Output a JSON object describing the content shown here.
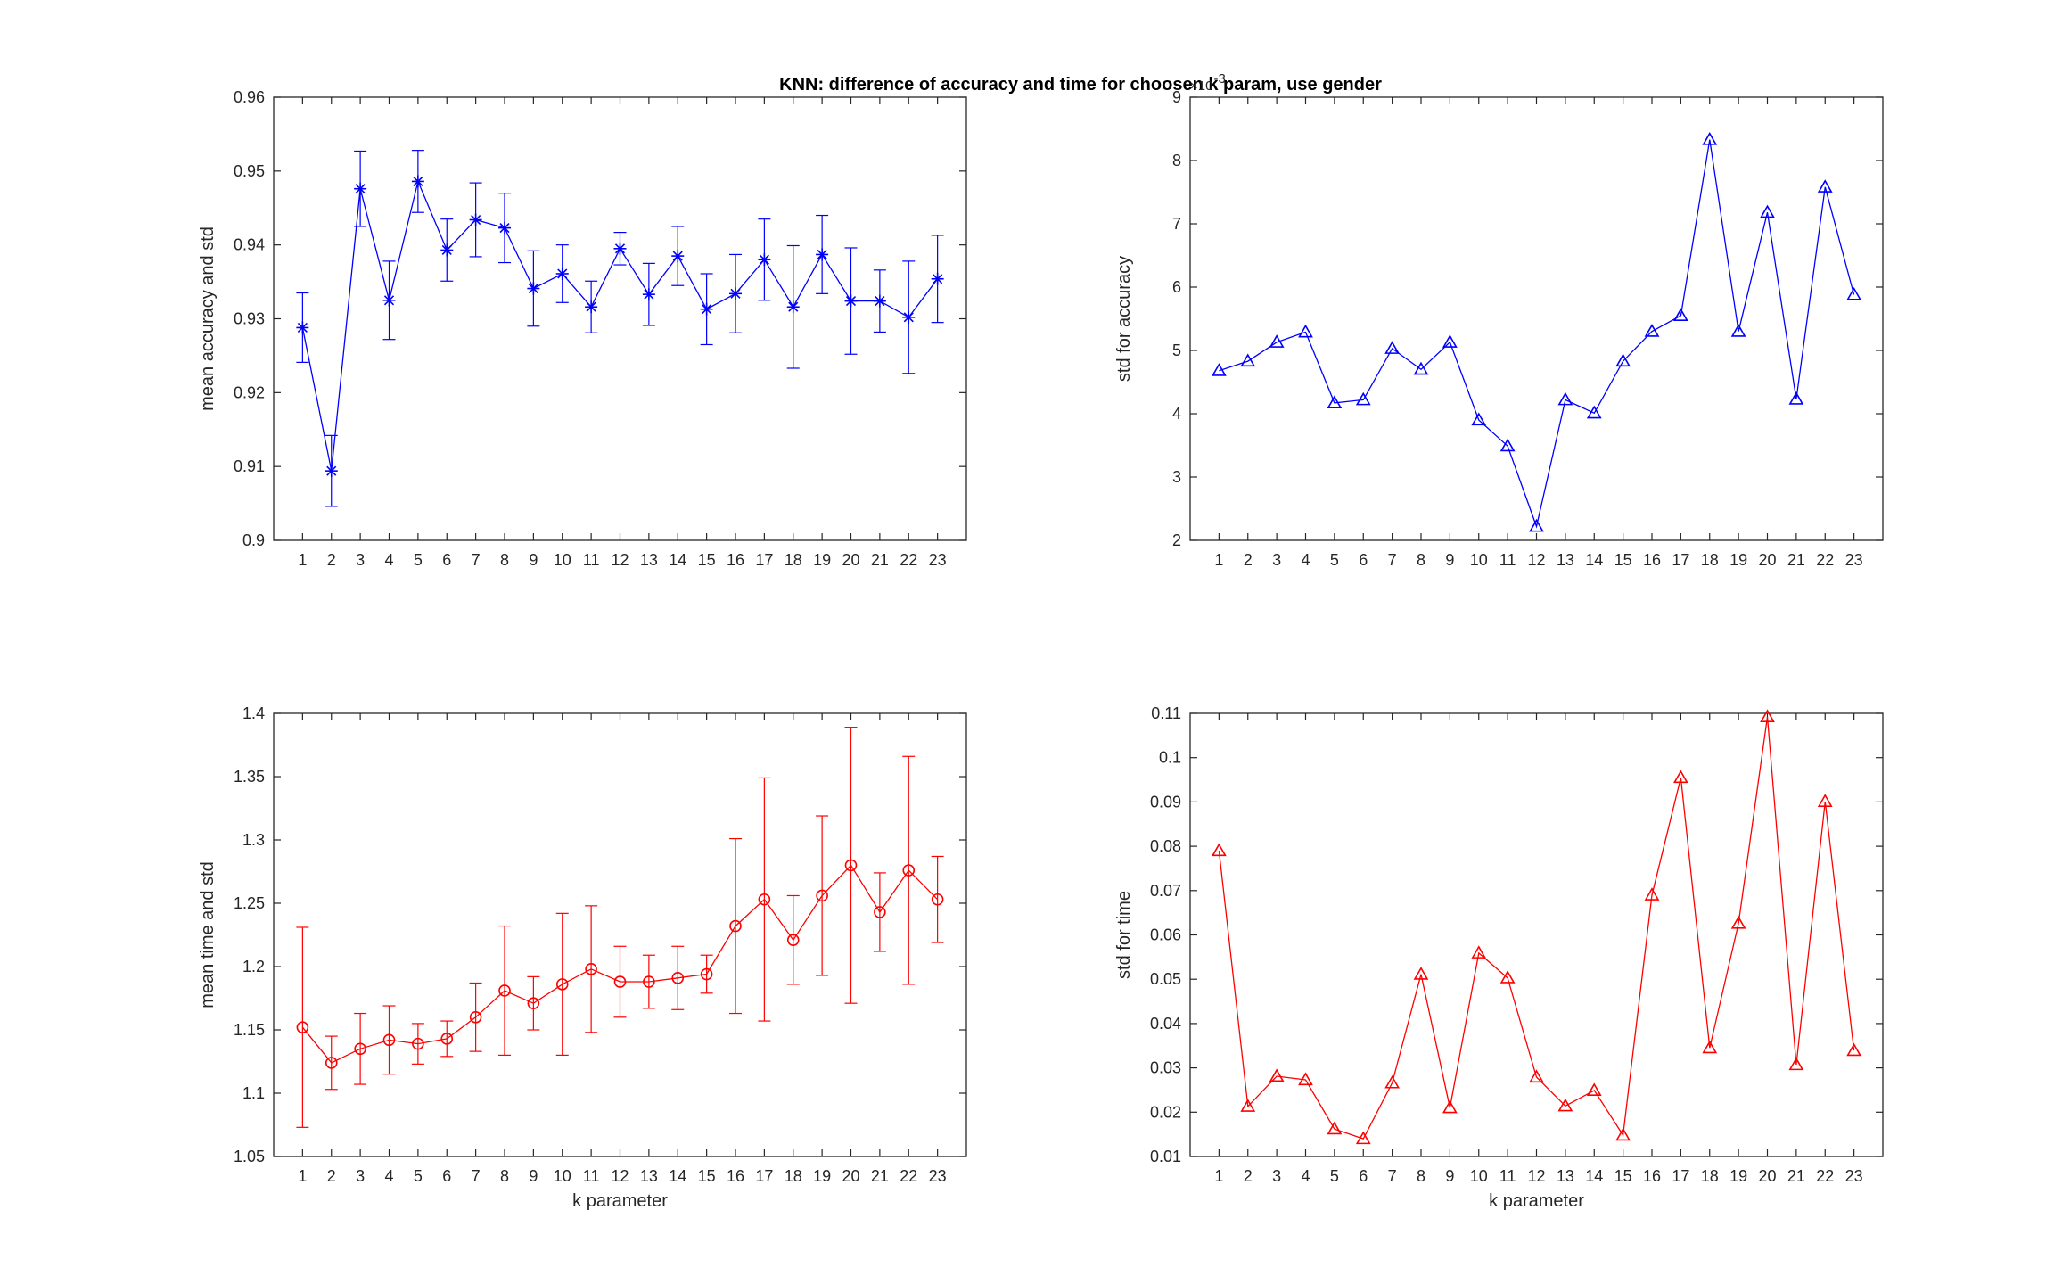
{
  "title": "KNN: difference of accuracy and time for choosen k param, use gender",
  "colors": {
    "blue": "#0000ff",
    "red": "#ff0000",
    "axis": "#262626"
  },
  "chart_data": [
    {
      "id": "mean-accuracy",
      "type": "line",
      "marker": "asterisk",
      "color": "#0000ff",
      "errorbars": true,
      "xlabel": "",
      "ylabel": "mean accuracy and std",
      "xlim": [
        0,
        24
      ],
      "ylim": [
        0.9,
        0.96
      ],
      "yticks": [
        0.9,
        0.91,
        0.92,
        0.93,
        0.94,
        0.95,
        0.96
      ],
      "ytick_labels": [
        "0.9",
        "0.91",
        "0.92",
        "0.93",
        "0.94",
        "0.95",
        "0.96"
      ],
      "x": [
        1,
        2,
        3,
        4,
        5,
        6,
        7,
        8,
        9,
        10,
        11,
        12,
        13,
        14,
        15,
        16,
        17,
        18,
        19,
        20,
        21,
        22,
        23
      ],
      "values": [
        0.9288,
        0.9094,
        0.9476,
        0.9325,
        0.9486,
        0.9393,
        0.9434,
        0.9423,
        0.9341,
        0.9361,
        0.9316,
        0.9395,
        0.9333,
        0.9385,
        0.9313,
        0.9334,
        0.938,
        0.9316,
        0.9387,
        0.9324,
        0.9324,
        0.9302,
        0.9354
      ],
      "errors": [
        0.0047,
        0.0048,
        0.0051,
        0.0053,
        0.0042,
        0.0042,
        0.005,
        0.0047,
        0.0051,
        0.0039,
        0.0035,
        0.0022,
        0.0042,
        0.004,
        0.0048,
        0.0053,
        0.0055,
        0.0083,
        0.0053,
        0.0072,
        0.0042,
        0.0076,
        0.0059
      ]
    },
    {
      "id": "std-accuracy",
      "type": "line",
      "marker": "triangle",
      "color": "#0000ff",
      "errorbars": false,
      "xlabel": "",
      "ylabel": "std for accuracy",
      "yexponent_label": "×10",
      "yexponent_power": "-3",
      "xlim": [
        0,
        24
      ],
      "ylim": [
        2,
        9
      ],
      "yticks": [
        2,
        3,
        4,
        5,
        6,
        7,
        8,
        9
      ],
      "ytick_labels": [
        "2",
        "3",
        "4",
        "5",
        "6",
        "7",
        "8",
        "9"
      ],
      "x": [
        1,
        2,
        3,
        4,
        5,
        6,
        7,
        8,
        9,
        10,
        11,
        12,
        13,
        14,
        15,
        16,
        17,
        18,
        19,
        20,
        21,
        22,
        23
      ],
      "values": [
        4.68,
        4.83,
        5.13,
        5.29,
        4.17,
        4.22,
        5.03,
        4.7,
        5.13,
        3.9,
        3.49,
        2.22,
        4.22,
        4.01,
        4.83,
        5.3,
        5.55,
        8.33,
        5.3,
        7.18,
        4.23,
        7.58,
        5.88
      ]
    },
    {
      "id": "mean-time",
      "type": "line",
      "marker": "circle",
      "color": "#ff0000",
      "errorbars": true,
      "xlabel": "k parameter",
      "ylabel": "mean time and std",
      "xlim": [
        0,
        24
      ],
      "ylim": [
        1.05,
        1.4
      ],
      "yticks": [
        1.05,
        1.1,
        1.15,
        1.2,
        1.25,
        1.3,
        1.35,
        1.4
      ],
      "ytick_labels": [
        "1.05",
        "1.1",
        "1.15",
        "1.2",
        "1.25",
        "1.3",
        "1.35",
        "1.4"
      ],
      "x": [
        1,
        2,
        3,
        4,
        5,
        6,
        7,
        8,
        9,
        10,
        11,
        12,
        13,
        14,
        15,
        16,
        17,
        18,
        19,
        20,
        21,
        22,
        23
      ],
      "values": [
        1.152,
        1.124,
        1.135,
        1.142,
        1.139,
        1.143,
        1.16,
        1.181,
        1.171,
        1.186,
        1.198,
        1.188,
        1.188,
        1.191,
        1.194,
        1.232,
        1.253,
        1.221,
        1.256,
        1.28,
        1.243,
        1.276,
        1.253
      ],
      "errors": [
        0.079,
        0.021,
        0.028,
        0.027,
        0.016,
        0.014,
        0.027,
        0.051,
        0.021,
        0.056,
        0.05,
        0.028,
        0.021,
        0.025,
        0.015,
        0.069,
        0.096,
        0.035,
        0.063,
        0.109,
        0.031,
        0.09,
        0.034
      ]
    },
    {
      "id": "std-time",
      "type": "line",
      "marker": "triangle",
      "color": "#ff0000",
      "errorbars": false,
      "xlabel": "k parameter",
      "ylabel": "std for time",
      "xlim": [
        0,
        24
      ],
      "ylim": [
        0.01,
        0.11
      ],
      "yticks": [
        0.01,
        0.02,
        0.03,
        0.04,
        0.05,
        0.06,
        0.07,
        0.08,
        0.09,
        0.1,
        0.11
      ],
      "ytick_labels": [
        "0.01",
        "0.02",
        "0.03",
        "0.04",
        "0.05",
        "0.06",
        "0.07",
        "0.08",
        "0.09",
        "0.1",
        "0.11"
      ],
      "x": [
        1,
        2,
        3,
        4,
        5,
        6,
        7,
        8,
        9,
        10,
        11,
        12,
        13,
        14,
        15,
        16,
        17,
        18,
        19,
        20,
        21,
        22,
        23
      ],
      "values": [
        0.079,
        0.0213,
        0.0281,
        0.0273,
        0.0162,
        0.014,
        0.0266,
        0.0511,
        0.021,
        0.0559,
        0.0503,
        0.0279,
        0.0214,
        0.0249,
        0.0148,
        0.069,
        0.0955,
        0.0345,
        0.0626,
        0.1092,
        0.0307,
        0.0901,
        0.0339
      ]
    }
  ]
}
